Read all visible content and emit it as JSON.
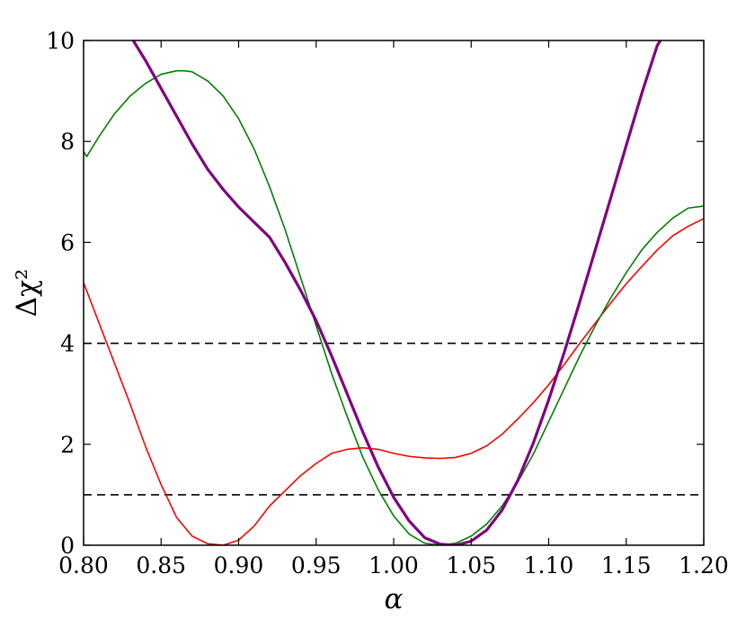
{
  "chart_data": {
    "type": "line",
    "title": "",
    "xlabel": "α",
    "ylabel": "Δχ²",
    "xlim": [
      0.8,
      1.2
    ],
    "ylim": [
      0,
      10
    ],
    "grid": false,
    "x_ticks": [
      "0.80",
      "0.85",
      "0.90",
      "0.95",
      "1.00",
      "1.05",
      "1.10",
      "1.15",
      "1.20"
    ],
    "y_ticks": [
      "0",
      "2",
      "4",
      "6",
      "8",
      "10"
    ],
    "hlines": [
      {
        "y": 1,
        "style": "dashed",
        "color": "#000000"
      },
      {
        "y": 4,
        "style": "dashed",
        "color": "#000000"
      }
    ],
    "series": [
      {
        "color": "#ff0000",
        "width": "thin",
        "x": [
          0.8,
          0.81,
          0.82,
          0.83,
          0.84,
          0.85,
          0.86,
          0.87,
          0.88,
          0.89,
          0.9,
          0.91,
          0.92,
          0.93,
          0.94,
          0.95,
          0.96,
          0.97,
          0.98,
          0.99,
          1.0,
          1.01,
          1.02,
          1.03,
          1.04,
          1.05,
          1.06,
          1.07,
          1.08,
          1.09,
          1.1,
          1.11,
          1.12,
          1.13,
          1.14,
          1.15,
          1.16,
          1.17,
          1.18,
          1.19,
          1.2
        ],
        "y": [
          5.2,
          4.4,
          3.6,
          2.8,
          1.95,
          1.2,
          0.55,
          0.18,
          0.03,
          0.0,
          0.1,
          0.38,
          0.78,
          1.08,
          1.38,
          1.62,
          1.82,
          1.9,
          1.93,
          1.9,
          1.82,
          1.76,
          1.73,
          1.72,
          1.74,
          1.82,
          1.97,
          2.2,
          2.5,
          2.82,
          3.18,
          3.58,
          4.0,
          4.4,
          4.8,
          5.18,
          5.52,
          5.85,
          6.13,
          6.32,
          6.47
        ]
      },
      {
        "color": "#008000",
        "width": "thin",
        "x": [
          0.8,
          0.802,
          0.81,
          0.82,
          0.83,
          0.84,
          0.85,
          0.86,
          0.865,
          0.87,
          0.88,
          0.89,
          0.9,
          0.91,
          0.92,
          0.93,
          0.94,
          0.95,
          0.96,
          0.97,
          0.98,
          0.99,
          1.0,
          1.01,
          1.02,
          1.03,
          1.04,
          1.05,
          1.06,
          1.07,
          1.08,
          1.09,
          1.1,
          1.11,
          1.12,
          1.13,
          1.14,
          1.15,
          1.16,
          1.17,
          1.18,
          1.19,
          1.2
        ],
        "y": [
          7.8,
          7.7,
          8.1,
          8.55,
          8.9,
          9.15,
          9.33,
          9.4,
          9.4,
          9.38,
          9.2,
          8.9,
          8.45,
          7.85,
          7.1,
          6.25,
          5.3,
          4.35,
          3.4,
          2.55,
          1.75,
          1.1,
          0.58,
          0.22,
          0.04,
          0.0,
          0.04,
          0.18,
          0.42,
          0.78,
          1.25,
          1.8,
          2.45,
          3.1,
          3.75,
          4.35,
          4.9,
          5.4,
          5.85,
          6.2,
          6.48,
          6.68,
          6.72
        ]
      },
      {
        "color": "#800080",
        "width": "thick",
        "x": [
          0.832,
          0.84,
          0.85,
          0.86,
          0.87,
          0.88,
          0.89,
          0.9,
          0.91,
          0.92,
          0.93,
          0.94,
          0.95,
          0.96,
          0.97,
          0.98,
          0.99,
          1.0,
          1.01,
          1.02,
          1.03,
          1.04,
          1.05,
          1.06,
          1.07,
          1.08,
          1.09,
          1.1,
          1.11,
          1.12,
          1.13,
          1.14,
          1.15,
          1.16,
          1.17,
          1.172
        ],
        "y": [
          10.0,
          9.6,
          9.05,
          8.5,
          7.95,
          7.45,
          7.05,
          6.7,
          6.4,
          6.1,
          5.6,
          5.05,
          4.45,
          3.75,
          3.0,
          2.25,
          1.55,
          0.95,
          0.48,
          0.15,
          0.02,
          0.0,
          0.08,
          0.3,
          0.7,
          1.28,
          2.02,
          2.88,
          3.82,
          4.82,
          5.85,
          6.88,
          7.92,
          8.95,
          9.9,
          10.0
        ]
      }
    ]
  }
}
